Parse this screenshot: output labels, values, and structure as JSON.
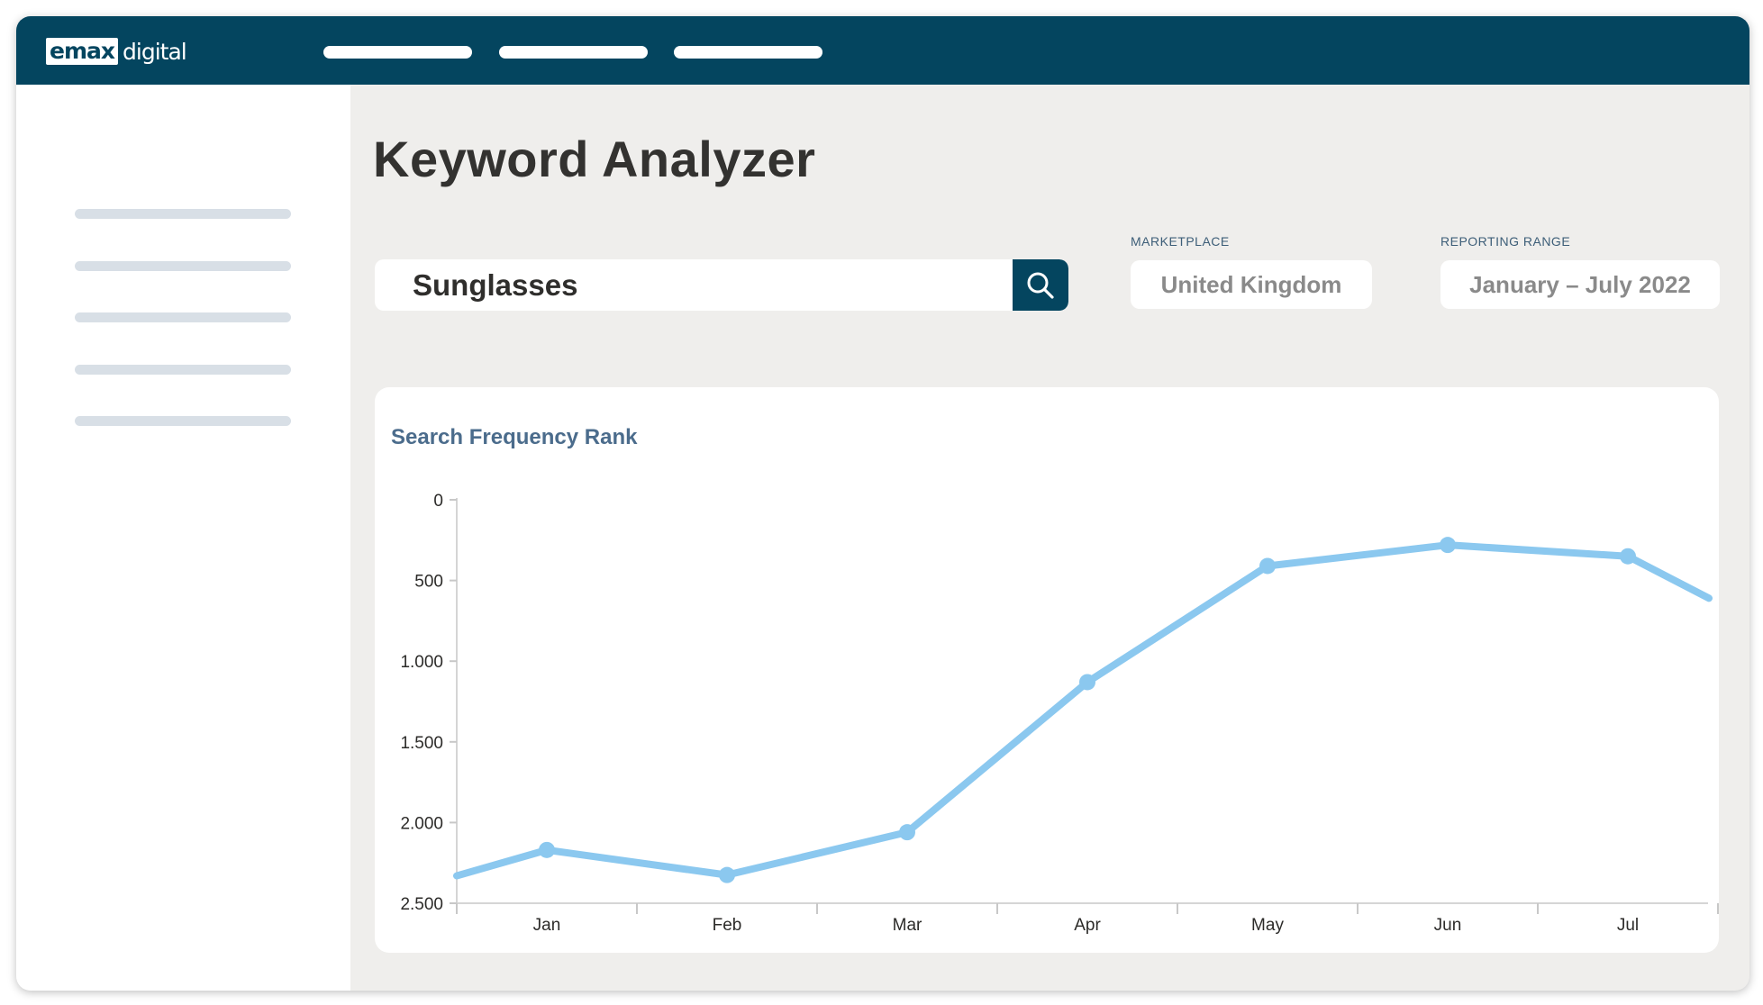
{
  "brand": {
    "logo_mark": "emax",
    "logo_text": "digital"
  },
  "page": {
    "title": "Keyword Analyzer"
  },
  "search": {
    "value": "Sunglasses",
    "icon": "search-icon"
  },
  "marketplace": {
    "label": "MARKETPLACE",
    "value": "United Kingdom"
  },
  "reporting_range": {
    "label": "REPORTING RANGE",
    "value": "January – July 2022"
  },
  "colors": {
    "topbar": "#04455f",
    "line": "#8bc8ef",
    "title_blue": "#4b6c8c"
  },
  "chart": {
    "title": "Search Frequency Rank"
  },
  "chart_data": {
    "type": "line",
    "title": "Search Frequency Rank",
    "x_tick_labels": [
      "Jan",
      "Feb",
      "Mar",
      "Apr",
      "May",
      "Jun",
      "Jul"
    ],
    "y_tick_labels": [
      "0",
      "500",
      "1.000",
      "1.500",
      "2.000",
      "2.500"
    ],
    "y_ticks": [
      0,
      500,
      1000,
      1500,
      2000,
      2500
    ],
    "ylim": [
      0,
      2500
    ],
    "y_inverted": true,
    "grid": false,
    "series": [
      {
        "x": [
          0.5,
          1,
          2,
          3,
          4,
          5,
          6,
          7,
          7.45
        ],
        "y": [
          2330,
          2170,
          2325,
          2060,
          1130,
          410,
          280,
          350,
          610
        ],
        "markers": [
          false,
          true,
          true,
          true,
          true,
          true,
          true,
          true,
          false
        ]
      }
    ]
  }
}
